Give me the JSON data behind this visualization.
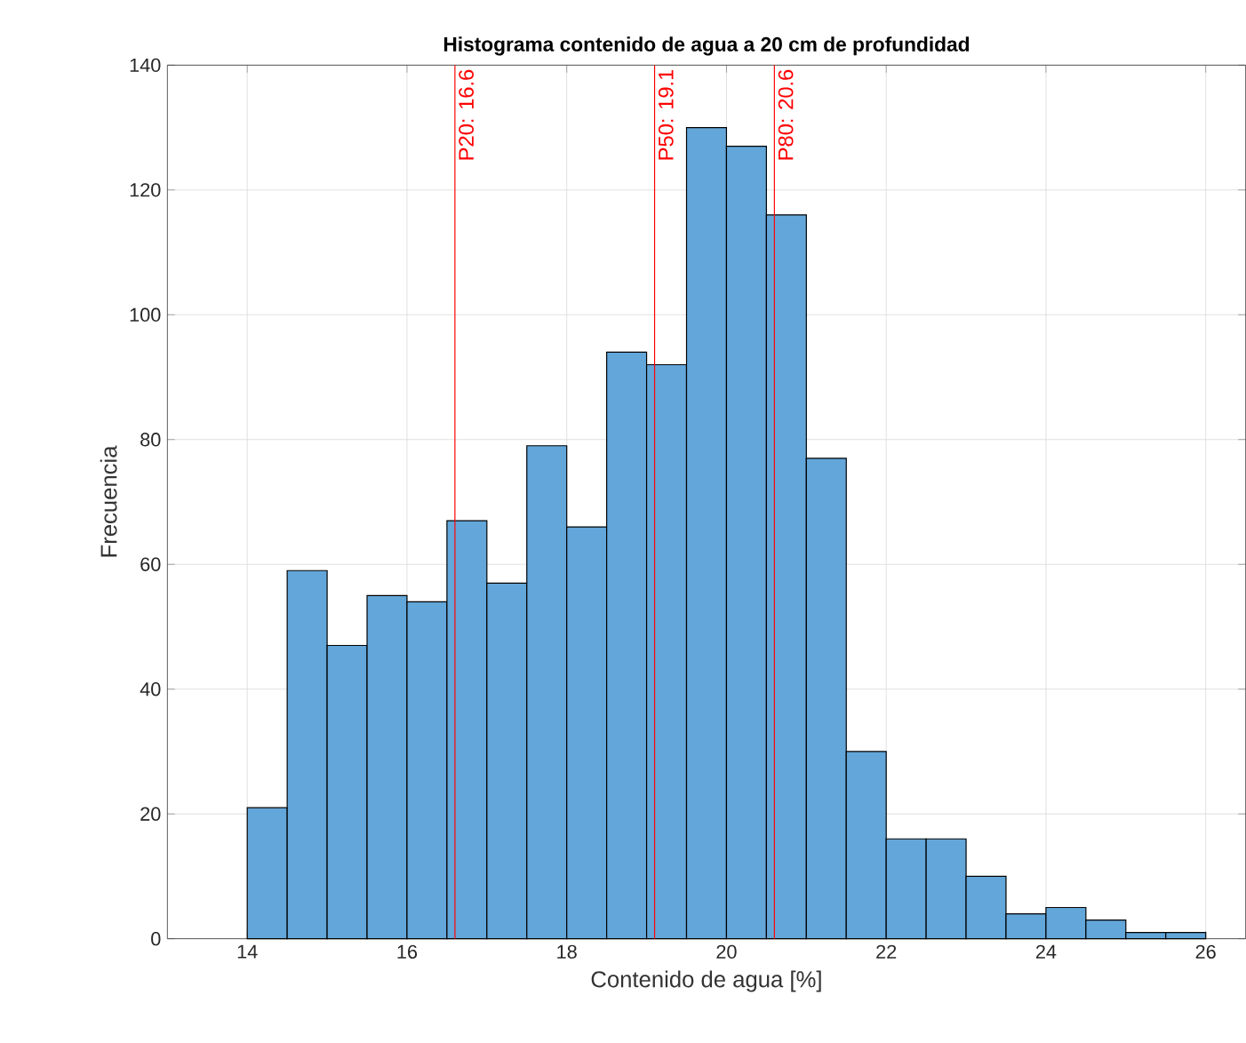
{
  "chart_data": {
    "type": "histogram",
    "title": "Histograma contenido de agua a 20 cm de profundidad",
    "xlabel": "Contenido de agua [%]",
    "ylabel": "Frecuencia",
    "bins": [
      14,
      14.5,
      15,
      15.5,
      16,
      16.5,
      17,
      17.5,
      18,
      18.5,
      19,
      19.5,
      20,
      20.5,
      21,
      21.5,
      22,
      22.5,
      23,
      23.5,
      24,
      24.5,
      25,
      25.5,
      26
    ],
    "values": [
      21,
      59,
      47,
      55,
      54,
      67,
      57,
      79,
      66,
      94,
      92,
      130,
      127,
      116,
      77,
      30,
      16,
      16,
      10,
      4,
      5,
      3,
      1,
      1
    ],
    "color": "#63a6d9",
    "xlim": [
      13,
      26.5
    ],
    "ylim": [
      0,
      140
    ],
    "xticks": [
      14,
      16,
      18,
      20,
      22,
      24,
      26
    ],
    "yticks": [
      0,
      20,
      40,
      60,
      80,
      100,
      120,
      140
    ],
    "grid": true,
    "ref_lines": [
      {
        "axis": "x",
        "value": 16.6,
        "label": "P20: 16.6",
        "color": "#ff0000"
      },
      {
        "axis": "x",
        "value": 19.1,
        "label": "P50: 19.1",
        "color": "#ff0000"
      },
      {
        "axis": "x",
        "value": 20.6,
        "label": "P80: 20.6",
        "color": "#ff0000"
      }
    ]
  }
}
